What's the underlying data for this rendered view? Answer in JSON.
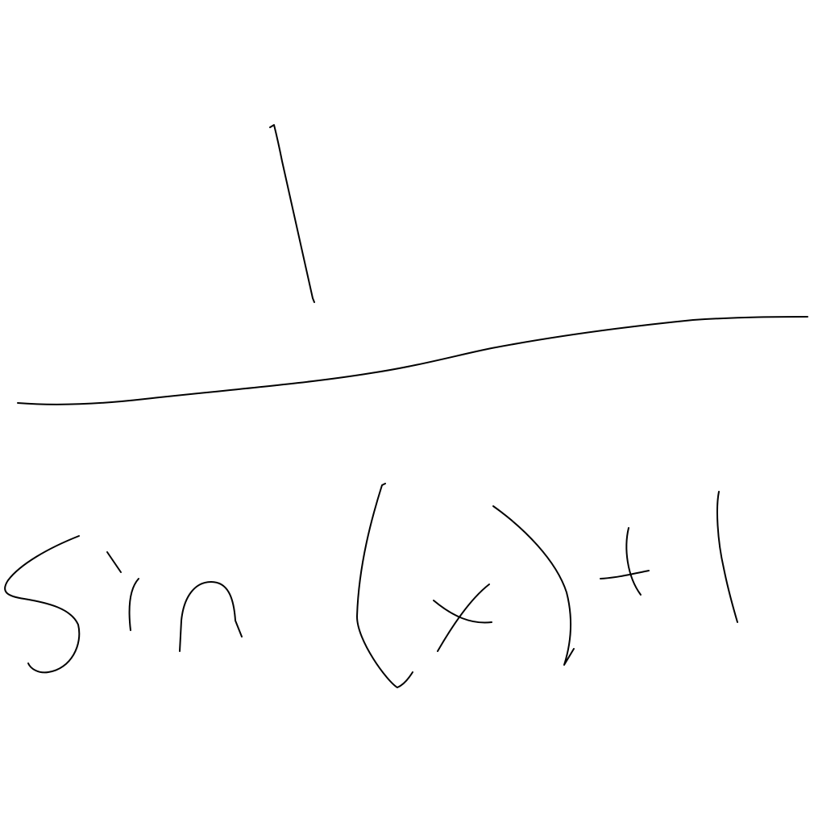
{
  "canvas": {
    "background": "#ffffff",
    "ink_color": "#000000"
  },
  "handwriting": {
    "numerator": "1",
    "denominator": "sin(x)+1",
    "fraction_bar": true
  }
}
